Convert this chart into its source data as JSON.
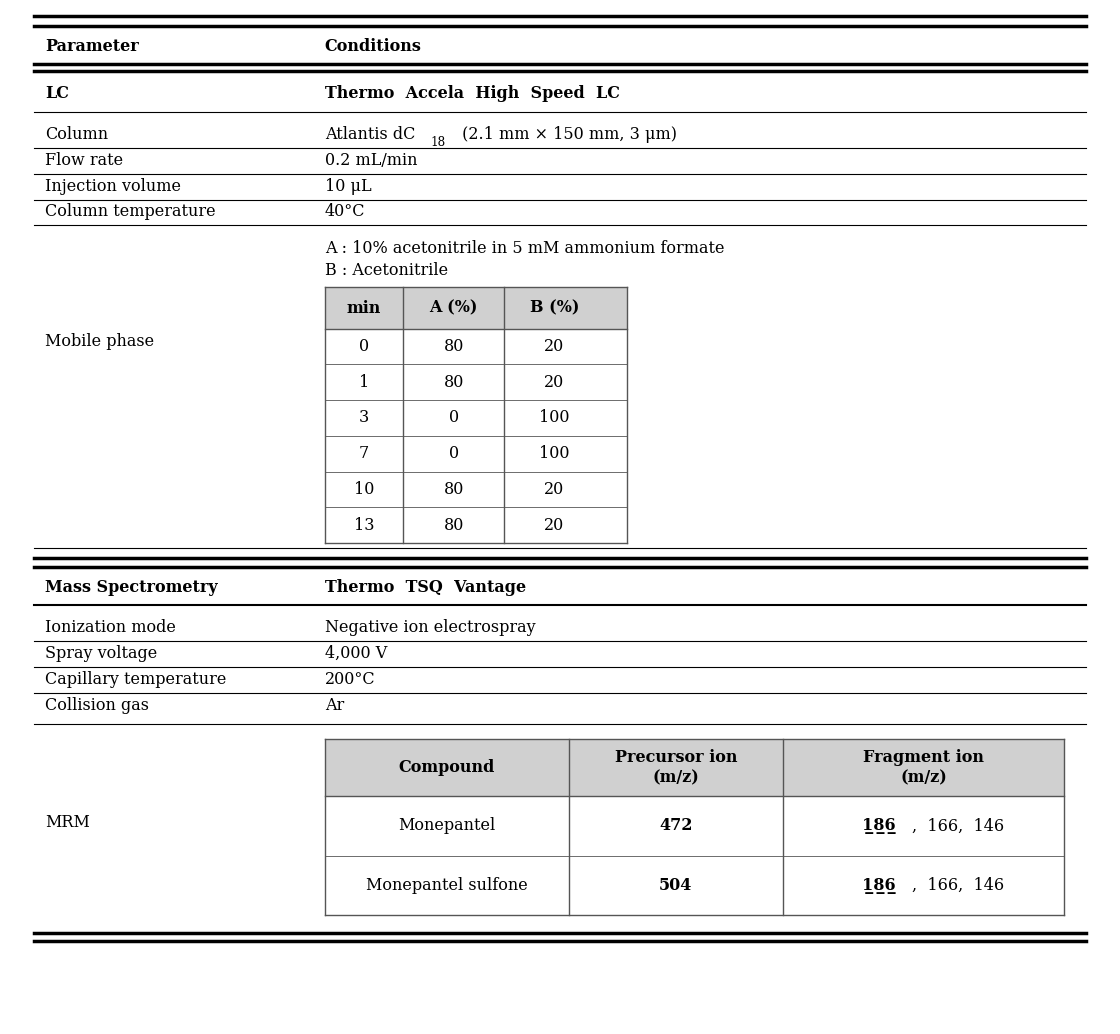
{
  "bg_color": "#ffffff",
  "text_color": "#000000",
  "header_row1": [
    "Parameter",
    "Conditions"
  ],
  "lc_label": "LC",
  "lc_value": "Thermo  Accela  High  Speed  LC",
  "lc_params": [
    [
      "Column",
      "Atlantis dC₁₈ (2.1 mm × 150 mm, 3 μm)"
    ],
    [
      "Flow rate",
      "0.2 mL/min"
    ],
    [
      "Injection volume",
      "10 μL"
    ],
    [
      "Column temperature",
      "40°C"
    ]
  ],
  "mobile_phase_label": "Mobile phase",
  "mobile_phase_lines": [
    "A : 10% acetonitrile in 5 mM ammonium formate",
    "B : Acetonitrile"
  ],
  "gradient_headers": [
    "min",
    "A (%)",
    "B (%)"
  ],
  "gradient_data": [
    [
      "0",
      "80",
      "20"
    ],
    [
      "1",
      "80",
      "20"
    ],
    [
      "3",
      "0",
      "100"
    ],
    [
      "7",
      "0",
      "100"
    ],
    [
      "10",
      "80",
      "20"
    ],
    [
      "13",
      "80",
      "20"
    ]
  ],
  "ms_label": "Mass Spectrometry",
  "ms_value": "Thermo  TSQ  Vantage",
  "ms_params": [
    [
      "Ionization mode",
      "Negative ion electrospray"
    ],
    [
      "Spray voltage",
      "4,000 V"
    ],
    [
      "Capillary temperature",
      "200°C"
    ],
    [
      "Collision gas",
      "Ar"
    ]
  ],
  "mrm_label": "MRM",
  "mrm_headers": [
    "Compound",
    "Precursor ion\n(m/z)",
    "Fragment ion\n(m/z)"
  ],
  "mrm_data": [
    [
      "Monepantel",
      "472",
      "186,  166,  146"
    ],
    [
      "Monepantel sulfone",
      "504",
      "186,  166,  146"
    ]
  ],
  "table_header_bg": "#d0d0d0",
  "table_border_color": "#555555",
  "font_size": 11.5,
  "col_split": 0.28
}
